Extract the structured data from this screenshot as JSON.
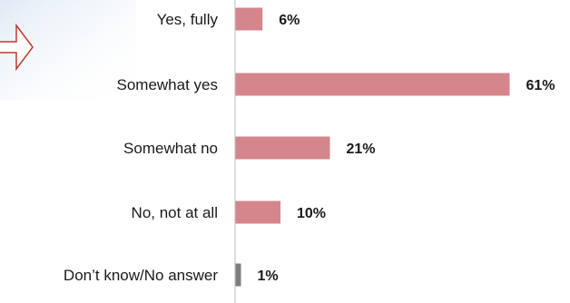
{
  "chart_data": {
    "type": "bar",
    "orientation": "horizontal",
    "categories": [
      "Yes, fully",
      "Somewhat yes",
      "Somewhat no",
      "No, not at all",
      "Don’t know/No answer"
    ],
    "values": [
      6,
      61,
      21,
      10,
      1
    ],
    "value_labels": [
      "6%",
      "61%",
      "21%",
      "10%",
      "1%"
    ],
    "unit": "%",
    "xlim": [
      0,
      61
    ],
    "grid": false,
    "colors": {
      "bar": "#d4868c",
      "bar_no_answer": "#7f7f7f",
      "axis": "#bfbfbf",
      "arrow": "#c0392b"
    }
  }
}
